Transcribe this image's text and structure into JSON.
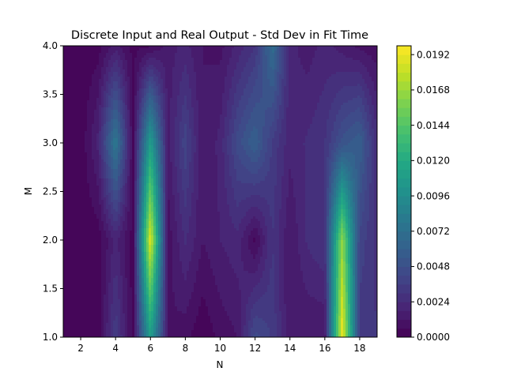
{
  "chart_data": {
    "type": "heatmap",
    "title": "Discrete Input and Real Output - Std Dev in Fit Time",
    "xlabel": "N",
    "ylabel": "M",
    "xlim": [
      1,
      19
    ],
    "ylim": [
      1.0,
      4.0
    ],
    "x_ticks": [
      "2",
      "4",
      "6",
      "8",
      "10",
      "12",
      "14",
      "16",
      "18"
    ],
    "y_ticks": [
      "1.0",
      "1.5",
      "2.0",
      "2.5",
      "3.0",
      "3.5",
      "4.0"
    ],
    "colormap": "viridis",
    "colorbar": {
      "range": [
        0,
        0.0198
      ],
      "ticks": [
        "0.0000",
        "0.0024",
        "0.0048",
        "0.0072",
        "0.0096",
        "0.0120",
        "0.0144",
        "0.0168",
        "0.0192"
      ]
    },
    "x": [
      1,
      2,
      3,
      4,
      5,
      6,
      7,
      8,
      9,
      10,
      11,
      12,
      13,
      14,
      15,
      16,
      17,
      18,
      19
    ],
    "y": [
      1,
      2,
      3,
      4
    ],
    "z": [
      [
        0.0001,
        0.0001,
        0.0002,
        0.0035,
        0.0003,
        0.011,
        0.0012,
        0.0008,
        0.0001,
        0.0008,
        0.0012,
        0.0045,
        0.0035,
        0.0012,
        0.0012,
        0.0012,
        0.0195,
        0.0032,
        0.003
      ],
      [
        0.0001,
        0.0001,
        0.0002,
        0.002,
        0.0003,
        0.019,
        0.0008,
        0.0025,
        0.0012,
        0.0018,
        0.0022,
        0.0004,
        0.003,
        0.0012,
        0.0025,
        0.003,
        0.0165,
        0.004,
        0.0028
      ],
      [
        0.0001,
        0.0001,
        0.002,
        0.008,
        0.0004,
        0.011,
        0.0015,
        0.004,
        0.0012,
        0.002,
        0.0045,
        0.006,
        0.0035,
        0.002,
        0.0025,
        0.003,
        0.005,
        0.006,
        0.0025
      ],
      [
        0.0001,
        0.0001,
        0.0003,
        0.0015,
        0.0004,
        0.0005,
        0.0015,
        0.002,
        0.0012,
        0.001,
        0.002,
        0.003,
        0.007,
        0.002,
        0.0015,
        0.002,
        0.0015,
        0.001,
        0.0008
      ]
    ]
  }
}
